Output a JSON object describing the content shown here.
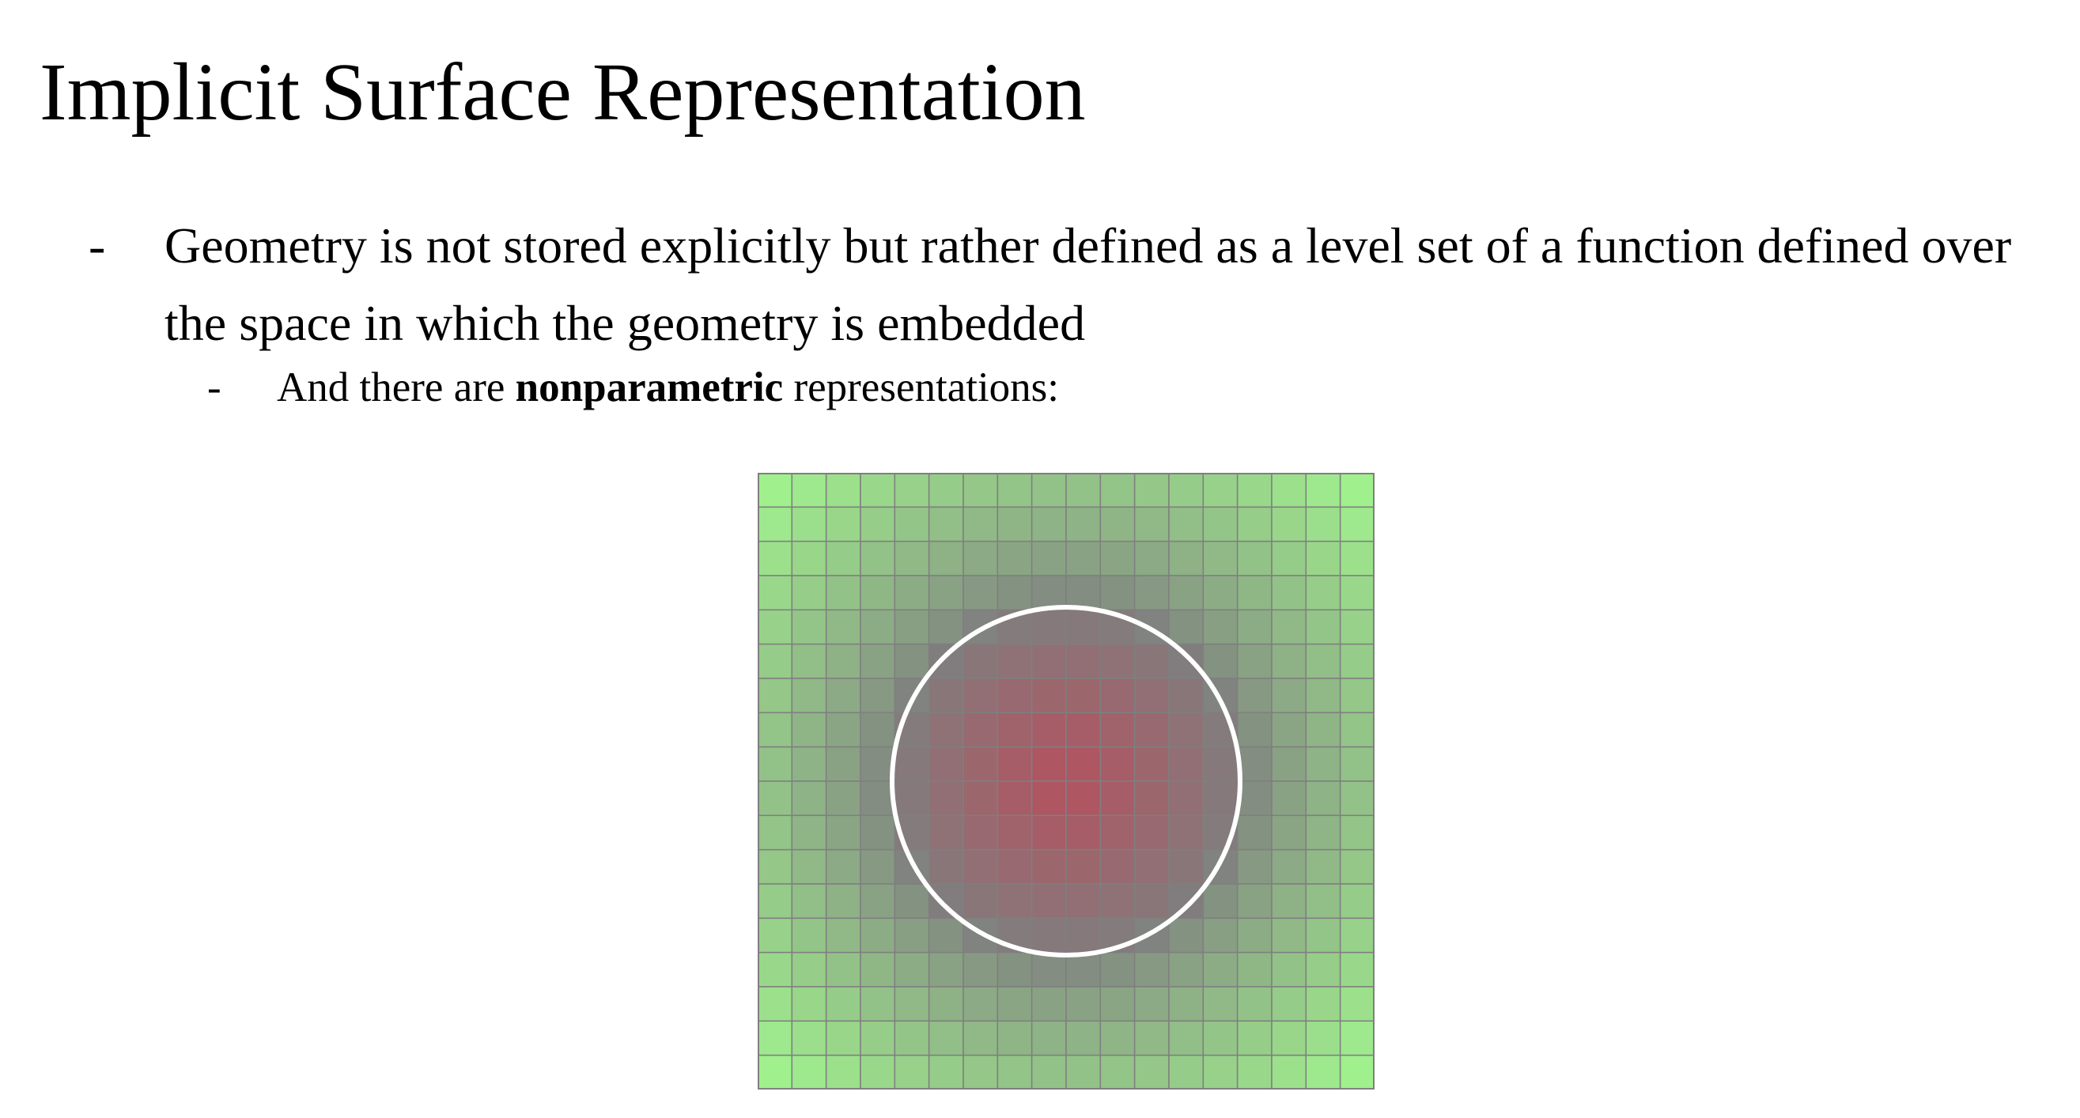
{
  "slide": {
    "title": "Implicit Surface Representation",
    "bullets": [
      {
        "marker": "-",
        "text": "Geometry is not stored explicitly but rather defined as a level set of a function defined over the space in which the geometry is embedded"
      }
    ],
    "sub_bullet": {
      "marker": "-",
      "prefix": "And there are ",
      "bold": "nonparametric",
      "suffix": " representations:"
    }
  },
  "figure": {
    "grid_cells_per_side": 18,
    "colors": {
      "outside": "#a3f98f",
      "mid": "#7f7f7f",
      "inside": "#b5505e",
      "grid_line": "#7f7f7f",
      "circle_stroke": "#ffffff"
    }
  }
}
